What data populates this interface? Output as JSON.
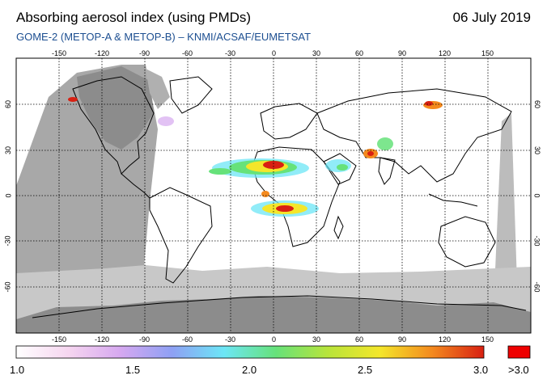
{
  "header": {
    "title": "Absorbing aerosol index (using PMDs)",
    "date": "06 July 2019",
    "subtitle": "GOME-2 (METOP-A & METOP-B)  –  KNMI/ACSAF/EUMETSAT"
  },
  "axes": {
    "lon_labels": [
      "-150",
      "-120",
      "-90",
      "-60",
      "-30",
      "0",
      "30",
      "60",
      "90",
      "120",
      "150"
    ],
    "lat_labels_left": [
      "60",
      "30",
      "0",
      "-30",
      "-60"
    ],
    "lat_labels_right": [
      "60",
      "30",
      "0",
      "-30",
      "-60"
    ]
  },
  "colorbar": {
    "labels": [
      "1.0",
      "1.5",
      "2.0",
      "2.5",
      "3.0"
    ],
    "overflow_label": ">3.0",
    "overflow_color": "#ee0000",
    "gradient": [
      "#ffffff",
      "#f6d6f0",
      "#d6a8f0",
      "#8ea0f4",
      "#6ce6f6",
      "#66e27a",
      "#b8e43a",
      "#f4e62a",
      "#f48a1e",
      "#d82012"
    ]
  },
  "colors": {
    "no_data": "#a8a8a8",
    "no_data_dark": "#8c8c8c",
    "grid": "#000000"
  }
}
